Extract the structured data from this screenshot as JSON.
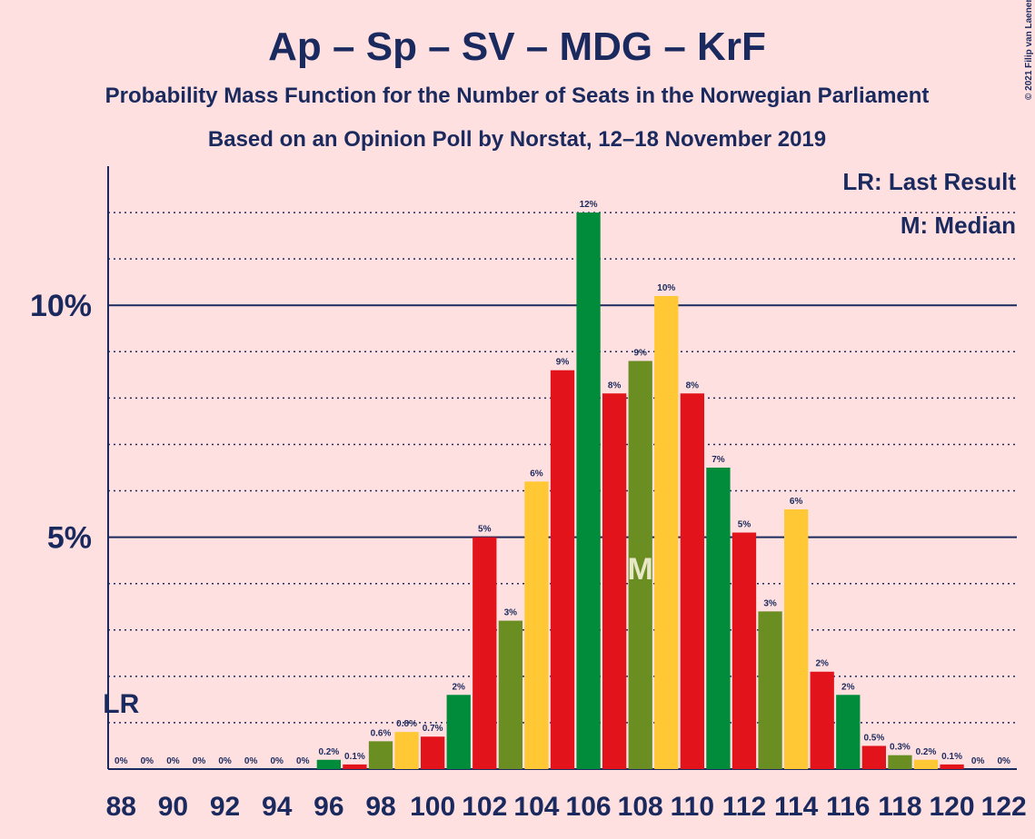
{
  "chart_data": {
    "type": "bar",
    "title": "Ap – Sp – SV – MDG – KrF",
    "subtitle": "Probability Mass Function for the Number of Seats in the Norwegian Parliament",
    "source": "Based on an Opinion Poll by Norstat, 12–18 November 2019",
    "copyright": "© 2021 Filip van Laenen",
    "categories": [
      88,
      null,
      90,
      null,
      92,
      null,
      94,
      null,
      96,
      null,
      98,
      null,
      100,
      null,
      102,
      null,
      104,
      null,
      106,
      null,
      108,
      null,
      110,
      null,
      112,
      null,
      114,
      null,
      116,
      null,
      118,
      null,
      120,
      null,
      122
    ],
    "values": [
      0,
      0,
      0,
      0,
      0,
      0,
      0,
      0,
      0.2,
      0.1,
      0.6,
      0.8,
      0.7,
      1.6,
      5.0,
      3.2,
      6.2,
      8.6,
      12.0,
      8.1,
      8.8,
      10.2,
      8.1,
      6.5,
      5.1,
      3.4,
      5.6,
      2.1,
      1.6,
      0.5,
      0.3,
      0.2,
      0.1,
      0,
      0
    ],
    "value_labels": [
      "0%",
      "0%",
      "0%",
      "0%",
      "0%",
      "0%",
      "0%",
      "0%",
      "0.2%",
      "0.1%",
      "0.6%",
      "0.8%",
      "0.7%",
      "2%",
      "5%",
      "3%",
      "6%",
      "9%",
      "12%",
      "8%",
      "9%",
      "10%",
      "8%",
      "7%",
      "5%",
      "3%",
      "6%",
      "2%",
      "2%",
      "0.5%",
      "0.3%",
      "0.2%",
      "0.1%",
      "0%",
      "0%"
    ],
    "colors": [
      "#e3131b",
      "#6b8e23",
      "#ffc834",
      "#e3131b",
      "#008c3a",
      "#e3131b",
      "#6b8e23",
      "#ffc834",
      "#008c3a",
      "#e3131b",
      "#6b8e23",
      "#ffc834",
      "#e3131b",
      "#008c3a",
      "#e3131b",
      "#6b8e23",
      "#ffc834",
      "#e3131b",
      "#008c3a",
      "#e3131b",
      "#6b8e23",
      "#ffc834",
      "#e3131b",
      "#008c3a",
      "#e3131b",
      "#6b8e23",
      "#ffc834",
      "#e3131b",
      "#008c3a",
      "#e3131b",
      "#6b8e23",
      "#ffc834",
      "#e3131b",
      "#008c3a",
      "#e3131b"
    ],
    "ylim": [
      0,
      13
    ],
    "yticks": [
      {
        "value": 5,
        "label": "5%"
      },
      {
        "value": 10,
        "label": "10%"
      }
    ],
    "minor_yticks": [
      1,
      2,
      3,
      4,
      6,
      7,
      8,
      9,
      11,
      12
    ],
    "grid": true,
    "last_result": {
      "label": "LR",
      "x": 88
    },
    "median": {
      "label": "M",
      "x": 108
    },
    "legend": [
      "LR: Last Result",
      "M: Median"
    ]
  }
}
